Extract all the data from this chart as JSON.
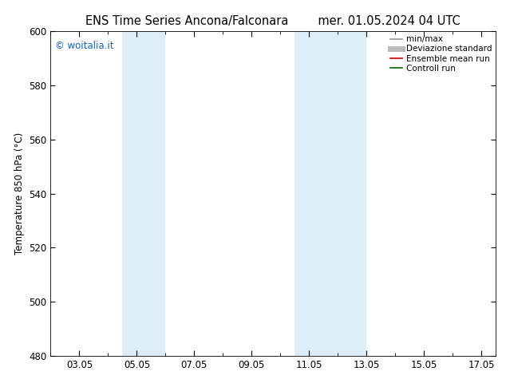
{
  "title_left": "ENS Time Series Ancona/Falconara",
  "title_right": "mer. 01.05.2024 04 UTC",
  "ylabel": "Temperature 850 hPa (°C)",
  "ylim": [
    480,
    600
  ],
  "yticks": [
    480,
    500,
    520,
    540,
    560,
    580,
    600
  ],
  "xtick_labels": [
    "03.05",
    "05.05",
    "07.05",
    "09.05",
    "11.05",
    "13.05",
    "15.05",
    "17.05"
  ],
  "xtick_positions_days": [
    3,
    5,
    7,
    9,
    11,
    13,
    15,
    17
  ],
  "xlim_days": [
    2.0,
    17.5
  ],
  "shaded_bands": [
    {
      "xstart_day": 4.5,
      "xend_day": 6.0
    },
    {
      "xstart_day": 10.5,
      "xend_day": 13.0
    }
  ],
  "shade_color": "#ddeef8",
  "watermark_text": "© woitalia.it",
  "watermark_color": "#1565c0",
  "legend_entries": [
    {
      "label": "min/max",
      "color": "#999999",
      "lw": 1.2
    },
    {
      "label": "Deviazione standard",
      "color": "#bbbbbb",
      "lw": 5
    },
    {
      "label": "Ensemble mean run",
      "color": "#cc0000",
      "lw": 1.2
    },
    {
      "label": "Controll run",
      "color": "#006600",
      "lw": 1.2
    }
  ],
  "bg_color": "#ffffff",
  "title_fontsize": 10.5,
  "axis_label_fontsize": 8.5,
  "tick_fontsize": 8.5,
  "legend_fontsize": 7.5
}
